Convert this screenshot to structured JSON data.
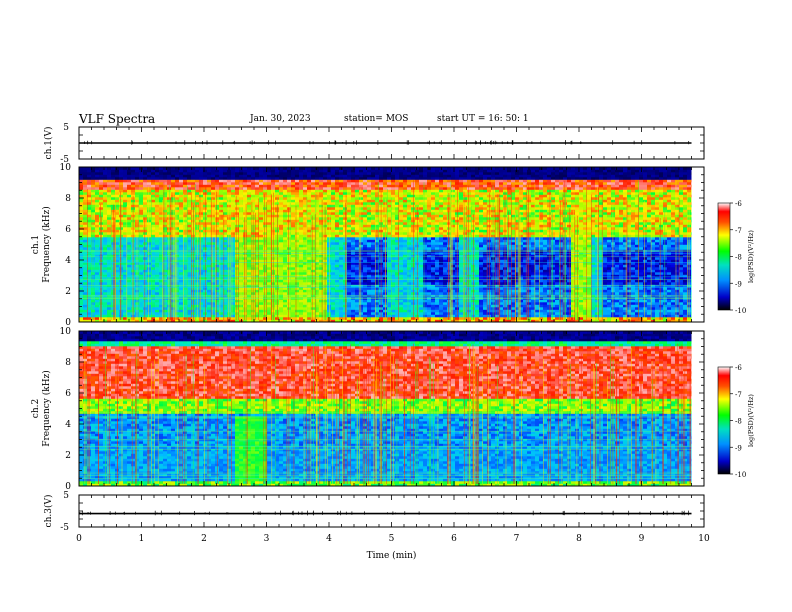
{
  "header": {
    "title": "VLF Spectra",
    "date": "Jan. 30, 2023",
    "station": "station= MOS",
    "start": "start  UT  =   16: 50: 1"
  },
  "chart_data": [
    {
      "type": "line",
      "panel": "ch1-waveform",
      "ylabel": "ch.1(V)",
      "ylim": [
        -5,
        5
      ],
      "yticks": [
        "5",
        "-5"
      ],
      "xlim": [
        0,
        10
      ],
      "series": [
        {
          "x": [
            0,
            9.8
          ],
          "y": [
            0,
            0
          ]
        }
      ]
    },
    {
      "type": "heatmap",
      "panel": "ch1-spectrogram",
      "ylabel": "ch.1\nFrequency (kHz)",
      "ylabel_lines": [
        "ch.1",
        "Frequency (kHz)"
      ],
      "ylim": [
        0,
        10
      ],
      "yticks": [
        "0",
        "2",
        "4",
        "6",
        "8",
        "10"
      ],
      "xlim": [
        0,
        10
      ],
      "data_xmax": 9.8,
      "colorbar": {
        "label": "log(PSD)(V²/Hz)",
        "ticks": [
          "-6",
          "-7",
          "-8",
          "-9",
          "-10"
        ],
        "range": [
          -10,
          -6
        ]
      }
    },
    {
      "type": "heatmap",
      "panel": "ch2-spectrogram",
      "ylabel": "ch.2\nFrequency (kHz)",
      "ylabel_lines": [
        "ch.2",
        "Frequency (kHz)"
      ],
      "ylim": [
        0,
        10
      ],
      "yticks": [
        "0",
        "2",
        "4",
        "6",
        "8",
        "10"
      ],
      "xlim": [
        0,
        10
      ],
      "data_xmax": 9.8,
      "colorbar": {
        "label": "log(PSD)(V²/Hz)",
        "ticks": [
          "-6",
          "-7",
          "-8",
          "-9",
          "-10"
        ],
        "range": [
          -10,
          -6
        ]
      }
    },
    {
      "type": "line",
      "panel": "ch3-waveform",
      "ylabel": "ch.3(V)",
      "ylim": [
        -5,
        5
      ],
      "yticks": [
        "5",
        "-5"
      ],
      "xlim": [
        0,
        10
      ],
      "xlabel": "Time  (min)",
      "xticks": [
        "0",
        "1",
        "2",
        "3",
        "4",
        "5",
        "6",
        "7",
        "8",
        "9",
        "10"
      ],
      "series": [
        {
          "x": [
            0,
            9.8
          ],
          "y": [
            -0.8,
            -0.8
          ]
        }
      ]
    }
  ]
}
